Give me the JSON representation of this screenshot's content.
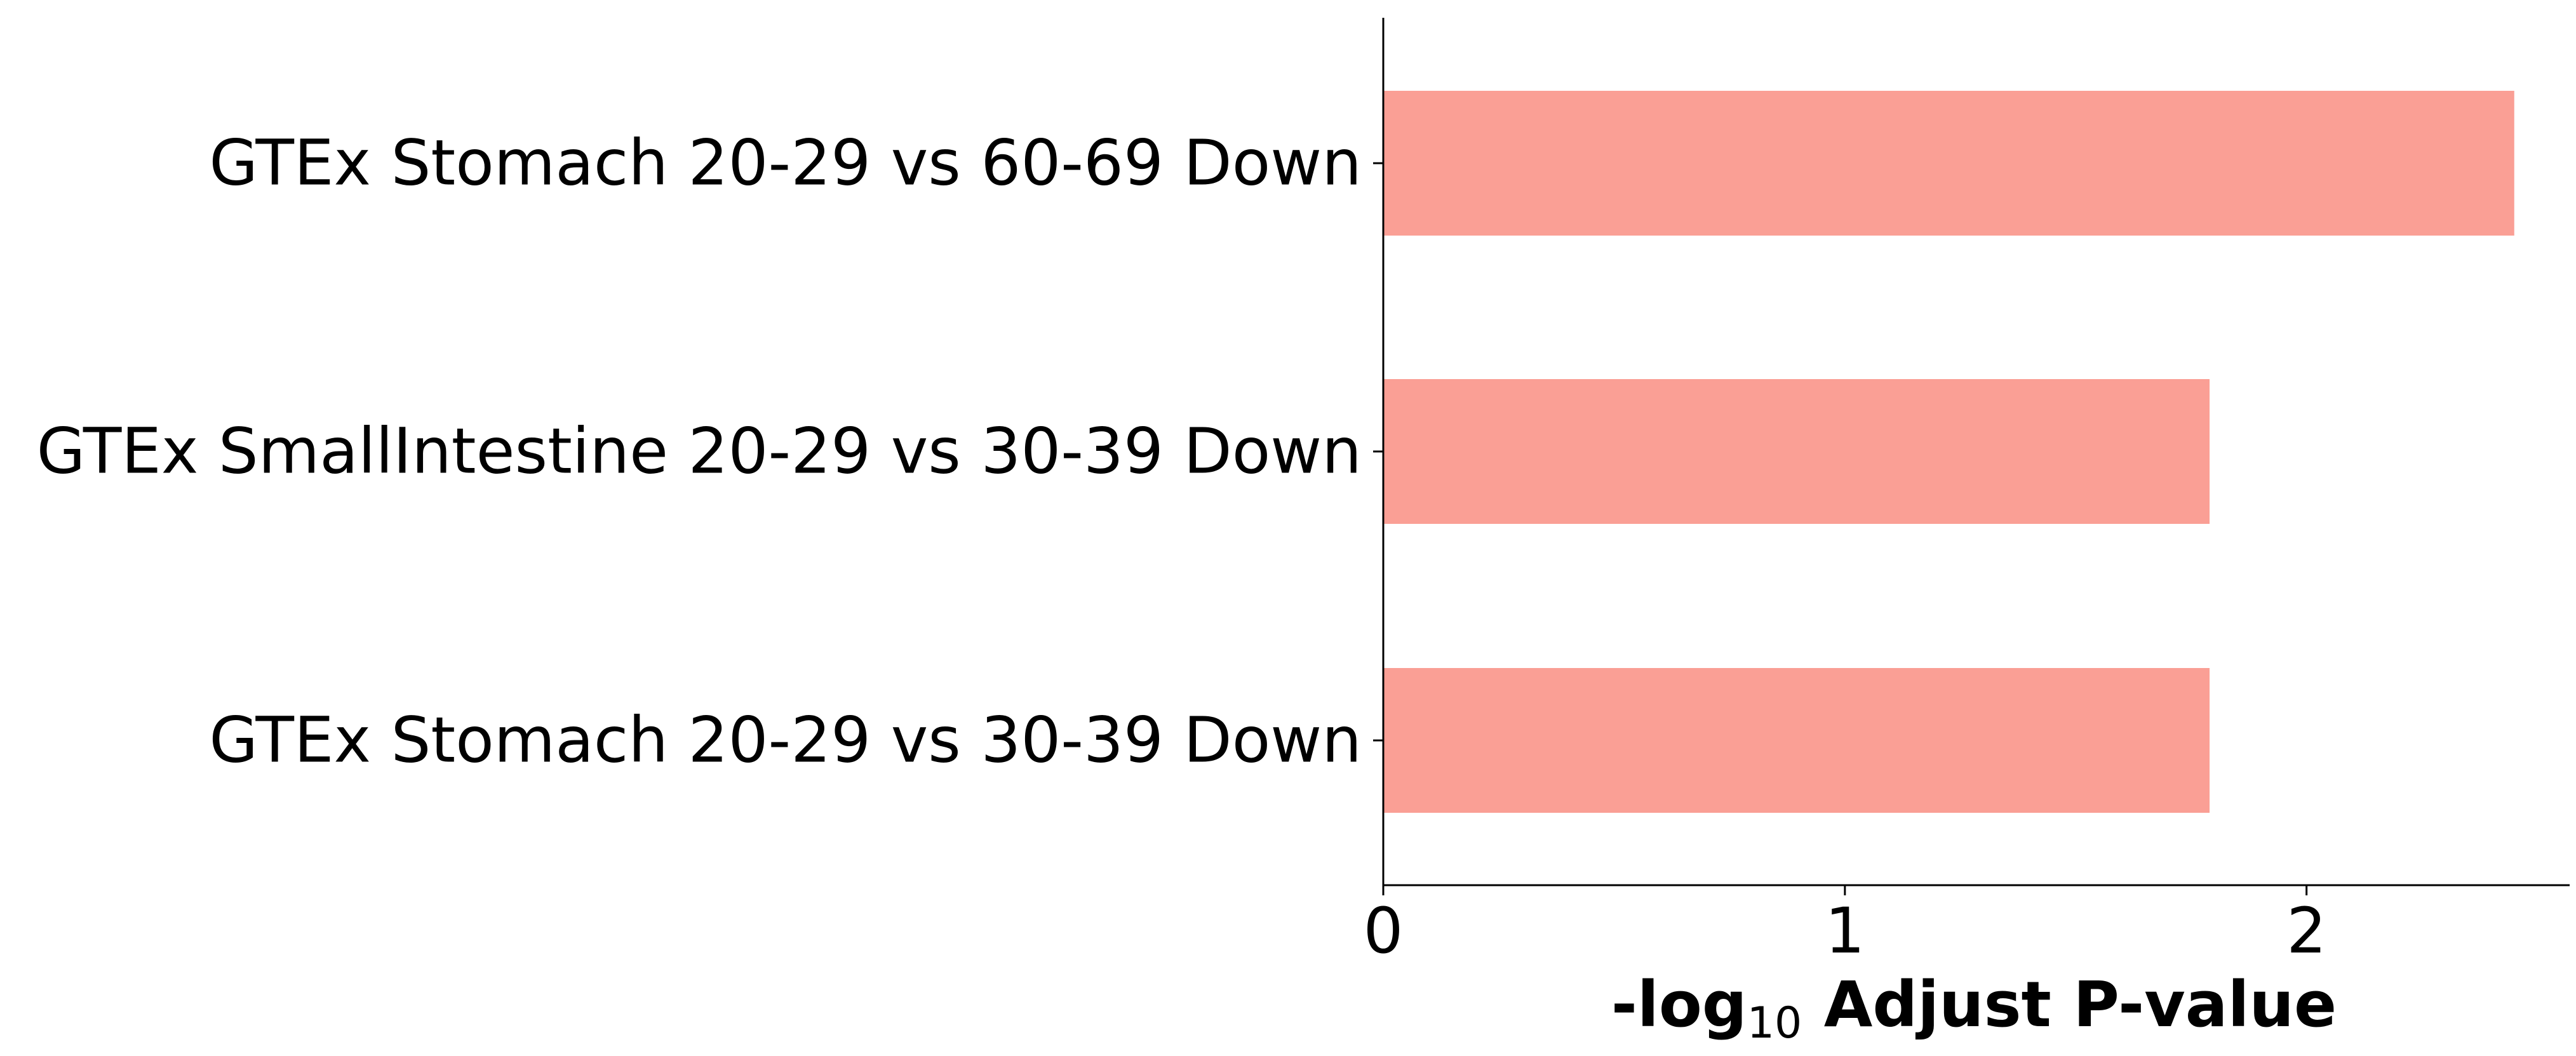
{
  "chart_data": {
    "type": "bar",
    "orientation": "horizontal",
    "categories": [
      "GTEx Stomach 20-29 vs 60-69 Down",
      "GTEx SmallIntestine 20-29 vs 30-39 Down",
      "GTEx Stomach 20-29 vs 30-39 Down"
    ],
    "values": [
      2.45,
      1.79,
      1.79
    ],
    "xlabel": {
      "prefix": "-log",
      "subscript": "10",
      "suffix": " Adjust P-value"
    },
    "xlim": [
      0,
      2.57
    ],
    "xticks": [
      0,
      1,
      2
    ],
    "xtick_labels": [
      "0",
      "1",
      "2"
    ],
    "grid": false,
    "legend": "none",
    "bar_color": "#fa9f95",
    "axis_color": "#000000"
  }
}
